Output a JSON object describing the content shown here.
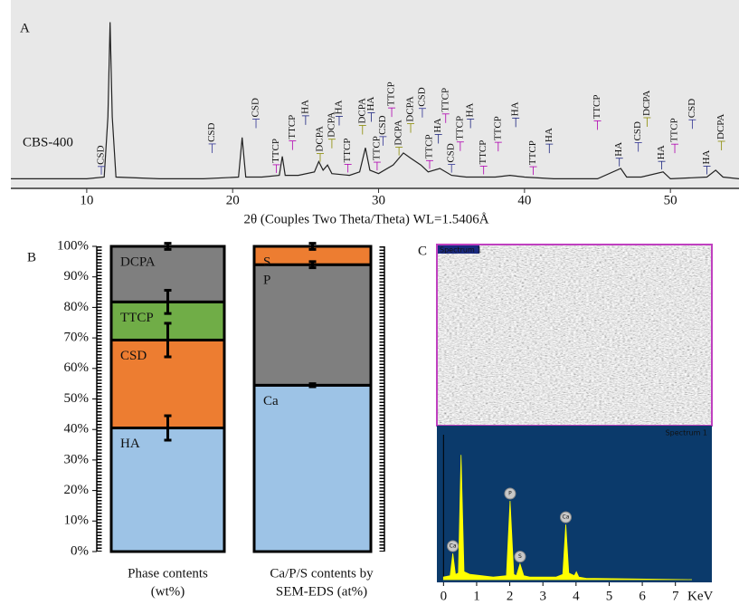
{
  "chart_data": [
    {
      "type": "line",
      "label": "A",
      "sample": "CBS-400",
      "x_label": "2θ (Couples Two Theta/Theta) WL=1.5406Å",
      "xlim": [
        4.8,
        54.7
      ],
      "xticks": [
        10,
        20,
        30,
        40,
        50
      ],
      "ylim": [
        0,
        100
      ],
      "color": "#222222",
      "x": [
        4.8,
        10,
        11.2,
        11.45,
        11.6,
        11.75,
        12,
        15,
        18,
        20.4,
        20.65,
        20.9,
        22,
        23.2,
        23.4,
        23.6,
        24.5,
        25.6,
        25.9,
        26.2,
        26.5,
        26.8,
        28,
        28.7,
        29.1,
        29.4,
        30,
        31,
        31.7,
        32.2,
        32.9,
        33.4,
        34.2,
        35,
        36,
        38,
        39,
        40,
        42,
        45,
        46.6,
        47,
        48,
        49.5,
        50,
        52.5,
        53.1,
        53.6,
        54.7
      ],
      "values": [
        4,
        4,
        5,
        40,
        95,
        40,
        5,
        4,
        4,
        5,
        28,
        5,
        5,
        6,
        17,
        6,
        6,
        8,
        14,
        9,
        12,
        7,
        6,
        8,
        22,
        9,
        7,
        12,
        19,
        16,
        12,
        8,
        10,
        6,
        5,
        5,
        6,
        5,
        4,
        4,
        10,
        5,
        5,
        8,
        4,
        5,
        9,
        5,
        4
      ],
      "peak_labels": [
        {
          "text": "CSD",
          "x": 11.0,
          "color": "#2e3192"
        },
        {
          "text": "CSD",
          "x": 18.6,
          "color": "#2e3192"
        },
        {
          "text": "CSD",
          "x": 21.6,
          "color": "#2e3192"
        },
        {
          "text": "TTCP",
          "x": 23.0,
          "color": "#b000b0"
        },
        {
          "text": "TTCP",
          "x": 24.1,
          "color": "#b000b0"
        },
        {
          "text": "HA",
          "x": 25.0,
          "color": "#1a237e"
        },
        {
          "text": "DCPA",
          "x": 26.0,
          "color": "#8a8a00"
        },
        {
          "text": "DCPA",
          "x": 26.8,
          "color": "#8a8a00"
        },
        {
          "text": "HA",
          "x": 27.3,
          "color": "#1a237e"
        },
        {
          "text": "TTCP",
          "x": 27.9,
          "color": "#b000b0"
        },
        {
          "text": "DCPA",
          "x": 28.9,
          "color": "#8a8a00"
        },
        {
          "text": "HA",
          "x": 29.5,
          "color": "#1a237e"
        },
        {
          "text": "TTCP",
          "x": 29.9,
          "color": "#b000b0"
        },
        {
          "text": "CSD",
          "x": 30.3,
          "color": "#2e3192"
        },
        {
          "text": "TTCP",
          "x": 30.9,
          "color": "#b000b0"
        },
        {
          "text": "DCPA",
          "x": 31.4,
          "color": "#8a8a00"
        },
        {
          "text": "DCPA",
          "x": 32.2,
          "color": "#8a8a00"
        },
        {
          "text": "CSD",
          "x": 33.0,
          "color": "#2e3192"
        },
        {
          "text": "TTCP",
          "x": 33.5,
          "color": "#b000b0"
        },
        {
          "text": "HA",
          "x": 34.1,
          "color": "#1a237e"
        },
        {
          "text": "TTCP",
          "x": 34.6,
          "color": "#b000b0"
        },
        {
          "text": "CSD",
          "x": 35.0,
          "color": "#2e3192"
        },
        {
          "text": "TTCP",
          "x": 35.6,
          "color": "#b000b0"
        },
        {
          "text": "HA",
          "x": 36.3,
          "color": "#1a237e"
        },
        {
          "text": "TTCP",
          "x": 37.2,
          "color": "#b000b0"
        },
        {
          "text": "TTCP",
          "x": 38.2,
          "color": "#b000b0"
        },
        {
          "text": "HA",
          "x": 39.4,
          "color": "#1a237e"
        },
        {
          "text": "TTCP",
          "x": 40.6,
          "color": "#b000b0"
        },
        {
          "text": "HA",
          "x": 41.7,
          "color": "#1a237e"
        },
        {
          "text": "TTCP",
          "x": 45.0,
          "color": "#b000b0"
        },
        {
          "text": "HA",
          "x": 46.5,
          "color": "#1a237e"
        },
        {
          "text": "CSD",
          "x": 47.8,
          "color": "#2e3192"
        },
        {
          "text": "DCPA",
          "x": 48.4,
          "color": "#8a8a00"
        },
        {
          "text": "HA",
          "x": 49.4,
          "color": "#1a237e"
        },
        {
          "text": "TTCP",
          "x": 50.3,
          "color": "#b000b0"
        },
        {
          "text": "CSD",
          "x": 51.5,
          "color": "#2e3192"
        },
        {
          "text": "HA",
          "x": 52.5,
          "color": "#1a237e"
        },
        {
          "text": "DCPA",
          "x": 53.5,
          "color": "#8a8a00"
        }
      ]
    },
    {
      "type": "stacked_bar",
      "label": "B",
      "ylim": [
        0,
        100
      ],
      "yticks": [
        {
          "value": 0,
          "label": "0%"
        },
        {
          "value": 10,
          "label": "10%"
        },
        {
          "value": 20,
          "label": "20%"
        },
        {
          "value": 30,
          "label": "30%"
        },
        {
          "value": 40,
          "label": "40%"
        },
        {
          "value": 50,
          "label": "50%"
        },
        {
          "value": 60,
          "label": "60%"
        },
        {
          "value": 70,
          "label": "70%"
        },
        {
          "value": 80,
          "label": "80%"
        },
        {
          "value": 90,
          "label": "90%"
        },
        {
          "value": 100,
          "label": "100%"
        }
      ],
      "bars": [
        {
          "category": [
            "Phase contents",
            "(wt%)"
          ],
          "segments": [
            {
              "name": "HA",
              "color": "#9dc3e6",
              "value": 40.5,
              "error": 4
            },
            {
              "name": "CSD",
              "color": "#ed7d31",
              "value": 28.8,
              "error": 5.5
            },
            {
              "name": "TTCP",
              "color": "#70ad47",
              "value": 12.5,
              "error": 3.8
            },
            {
              "name": "DCPA",
              "color": "#7f7f7f",
              "value": 18.2,
              "error": 1
            }
          ]
        },
        {
          "category": [
            "Ca/P/S contents by",
            "SEM-EDS (at%)"
          ],
          "segments": [
            {
              "name": "Ca",
              "color": "#9dc3e6",
              "value": 54.5,
              "error": 0.5
            },
            {
              "name": "P",
              "color": "#7f7f7f",
              "value": 39.5,
              "error": 1
            },
            {
              "name": "S",
              "color": "#ed7d31",
              "value": 6,
              "error": 1
            }
          ]
        }
      ]
    },
    {
      "type": "spectrum",
      "label": "C",
      "image_caption": "Spectrum 1",
      "spectrum_title": "Spectrum 1",
      "x_label": "KeV",
      "xlim": [
        -0.2,
        8.1
      ],
      "xticks": [
        0,
        1,
        2,
        3,
        4,
        5,
        6,
        7
      ],
      "ylim": [
        0,
        100
      ],
      "color": "#ffff00",
      "x": [
        0,
        0.2,
        0.28,
        0.36,
        0.45,
        0.53,
        0.62,
        0.8,
        1.5,
        1.9,
        2.01,
        2.12,
        2.2,
        2.31,
        2.42,
        2.6,
        3.4,
        3.6,
        3.69,
        3.78,
        3.95,
        4.01,
        4.08,
        4.3,
        7.5
      ],
      "values": [
        2,
        3,
        20,
        4,
        5,
        95,
        6,
        4,
        2,
        3,
        60,
        4,
        3,
        12,
        3,
        2,
        2,
        4,
        42,
        5,
        3,
        6,
        2,
        1,
        0
      ],
      "peak_labels": [
        {
          "text": "Ca",
          "x": 0.28
        },
        {
          "text": "P",
          "x": 2.01
        },
        {
          "text": "S",
          "x": 2.31
        },
        {
          "text": "Ca",
          "x": 3.69
        }
      ]
    }
  ]
}
